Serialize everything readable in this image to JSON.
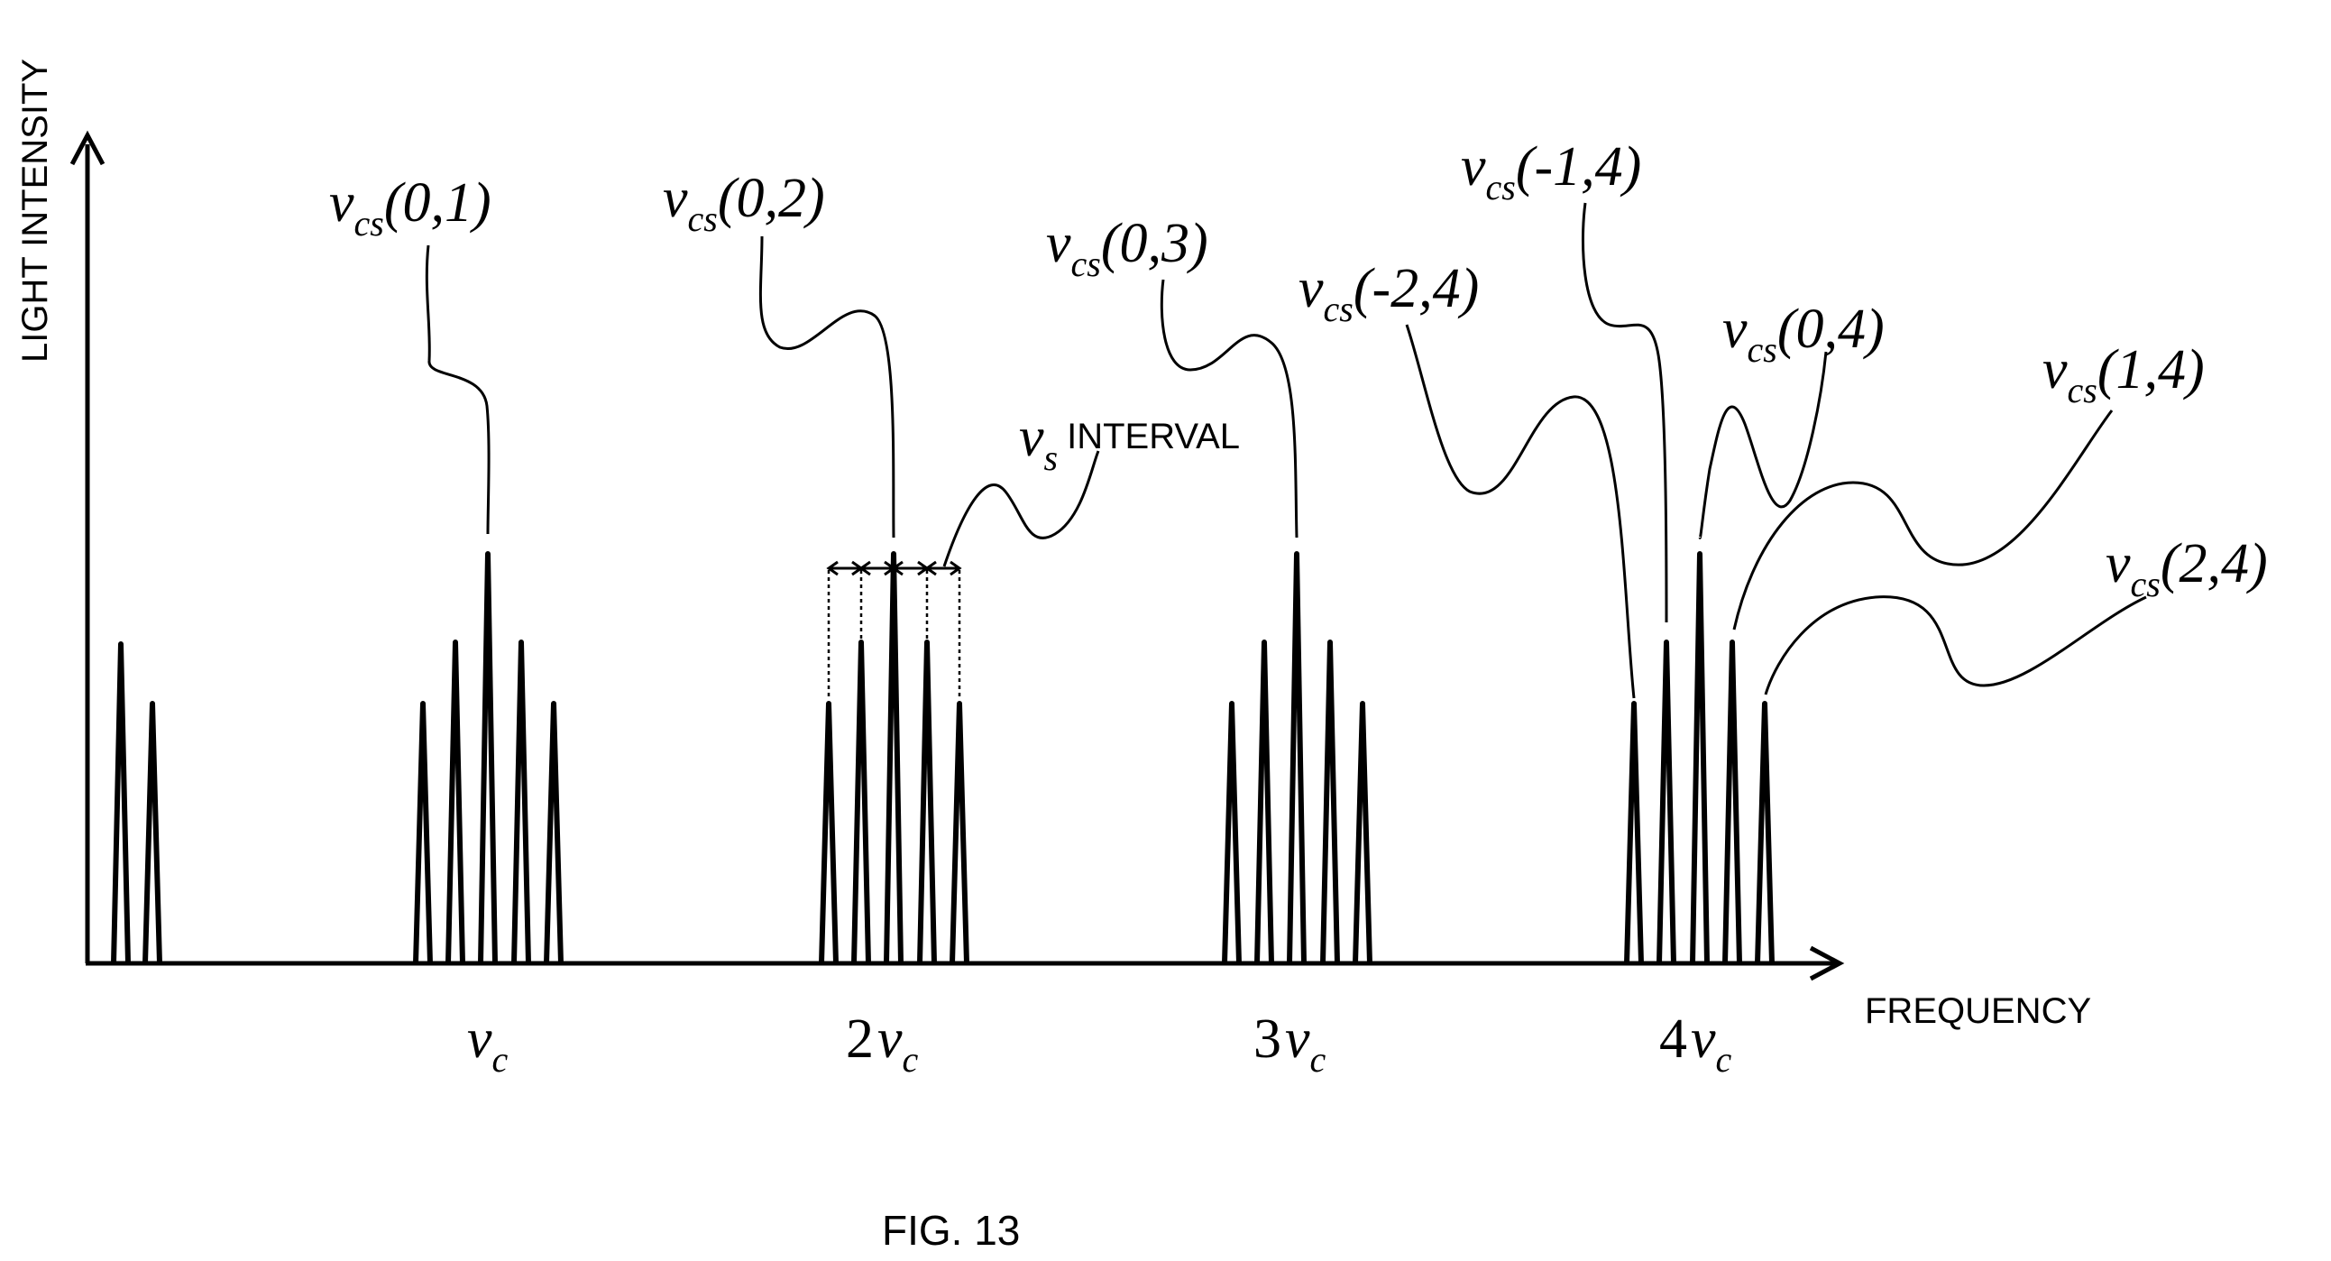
{
  "figure_caption": "FIG. 13",
  "axes": {
    "y_label": "LIGHT INTENSITY",
    "x_label": "FREQUENCY"
  },
  "x_ticks": [
    {
      "coef": "",
      "sym": "ν",
      "sub": "c"
    },
    {
      "coef": "2",
      "sym": "ν",
      "sub": "c"
    },
    {
      "coef": "3",
      "sym": "ν",
      "sub": "c"
    },
    {
      "coef": "4",
      "sym": "ν",
      "sub": "c"
    }
  ],
  "interval_label": {
    "sym": "ν",
    "sub": "s",
    "text": "INTERVAL"
  },
  "peak_labels": [
    {
      "sym": "ν",
      "sub": "cs",
      "args": "(0,1)"
    },
    {
      "sym": "ν",
      "sub": "cs",
      "args": "(0,2)"
    },
    {
      "sym": "ν",
      "sub": "cs",
      "args": "(0,3)"
    },
    {
      "sym": "ν",
      "sub": "cs",
      "args": "(-2,4)"
    },
    {
      "sym": "ν",
      "sub": "cs",
      "args": "(-1,4)"
    },
    {
      "sym": "ν",
      "sub": "cs",
      "args": "(0,4)"
    },
    {
      "sym": "ν",
      "sub": "cs",
      "args": "(1,4)"
    },
    {
      "sym": "ν",
      "sub": "cs",
      "args": "(2,4)"
    }
  ]
}
